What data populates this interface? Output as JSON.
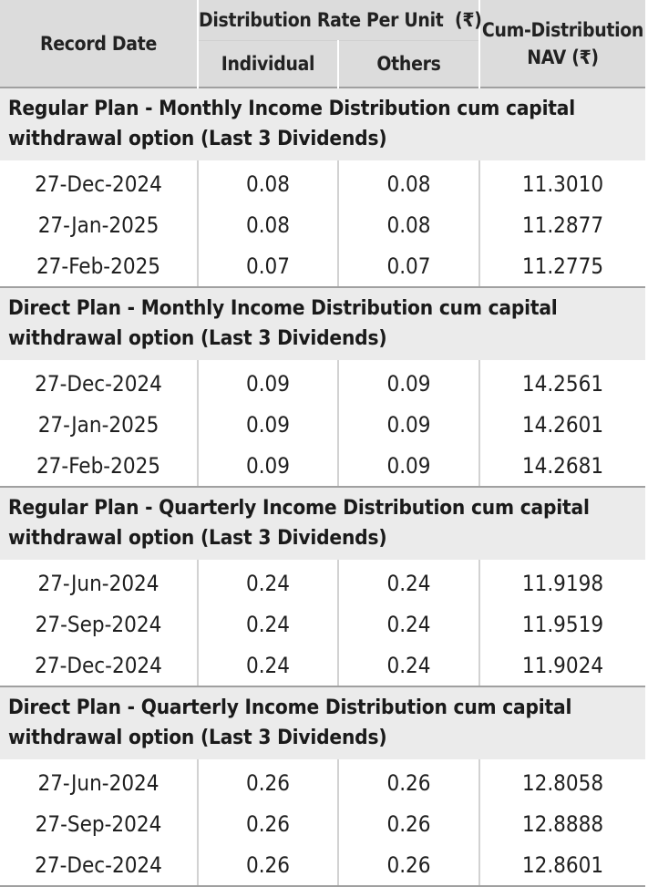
{
  "header": {
    "record_date": "Record Date",
    "distribution_rate": "Distribution Rate Per Unit  (₹)",
    "individual": "Individual",
    "others": "Others",
    "cum_distribution_line1": "Cum-Distribution",
    "cum_distribution_line2": "NAV (₹)"
  },
  "sections": [
    {
      "title": "Regular Plan - Monthly Income Distribution cum capital withdrawal option (Last 3 Dividends)",
      "rows": [
        {
          "date": "27-Dec-2024",
          "individual": "0.08",
          "others": "0.08",
          "nav": "11.3010"
        },
        {
          "date": "27-Jan-2025",
          "individual": "0.08",
          "others": "0.08",
          "nav": "11.2877"
        },
        {
          "date": "27-Feb-2025",
          "individual": "0.07",
          "others": "0.07",
          "nav": "11.2775"
        }
      ]
    },
    {
      "title": "Direct Plan - Monthly Income Distribution cum capital withdrawal option (Last 3 Dividends)",
      "rows": [
        {
          "date": "27-Dec-2024",
          "individual": "0.09",
          "others": "0.09",
          "nav": "14.2561"
        },
        {
          "date": "27-Jan-2025",
          "individual": "0.09",
          "others": "0.09",
          "nav": "14.2601"
        },
        {
          "date": "27-Feb-2025",
          "individual": "0.09",
          "others": "0.09",
          "nav": "14.2681"
        }
      ]
    },
    {
      "title": "Regular Plan - Quarterly Income Distribution cum capital withdrawal option (Last 3 Dividends)",
      "rows": [
        {
          "date": "27-Jun-2024",
          "individual": "0.24",
          "others": "0.24",
          "nav": "11.9198"
        },
        {
          "date": "27-Sep-2024",
          "individual": "0.24",
          "others": "0.24",
          "nav": "11.9519"
        },
        {
          "date": "27-Dec-2024",
          "individual": "0.24",
          "others": "0.24",
          "nav": "11.9024"
        }
      ]
    },
    {
      "title": "Direct Plan - Quarterly Income Distribution cum capital withdrawal option (Last 3 Dividends)",
      "rows": [
        {
          "date": "27-Jun-2024",
          "individual": "0.26",
          "others": "0.26",
          "nav": "12.8058"
        },
        {
          "date": "27-Sep-2024",
          "individual": "0.26",
          "others": "0.26",
          "nav": "12.8888"
        },
        {
          "date": "27-Dec-2024",
          "individual": "0.26",
          "others": "0.26",
          "nav": "12.8601"
        }
      ]
    }
  ]
}
